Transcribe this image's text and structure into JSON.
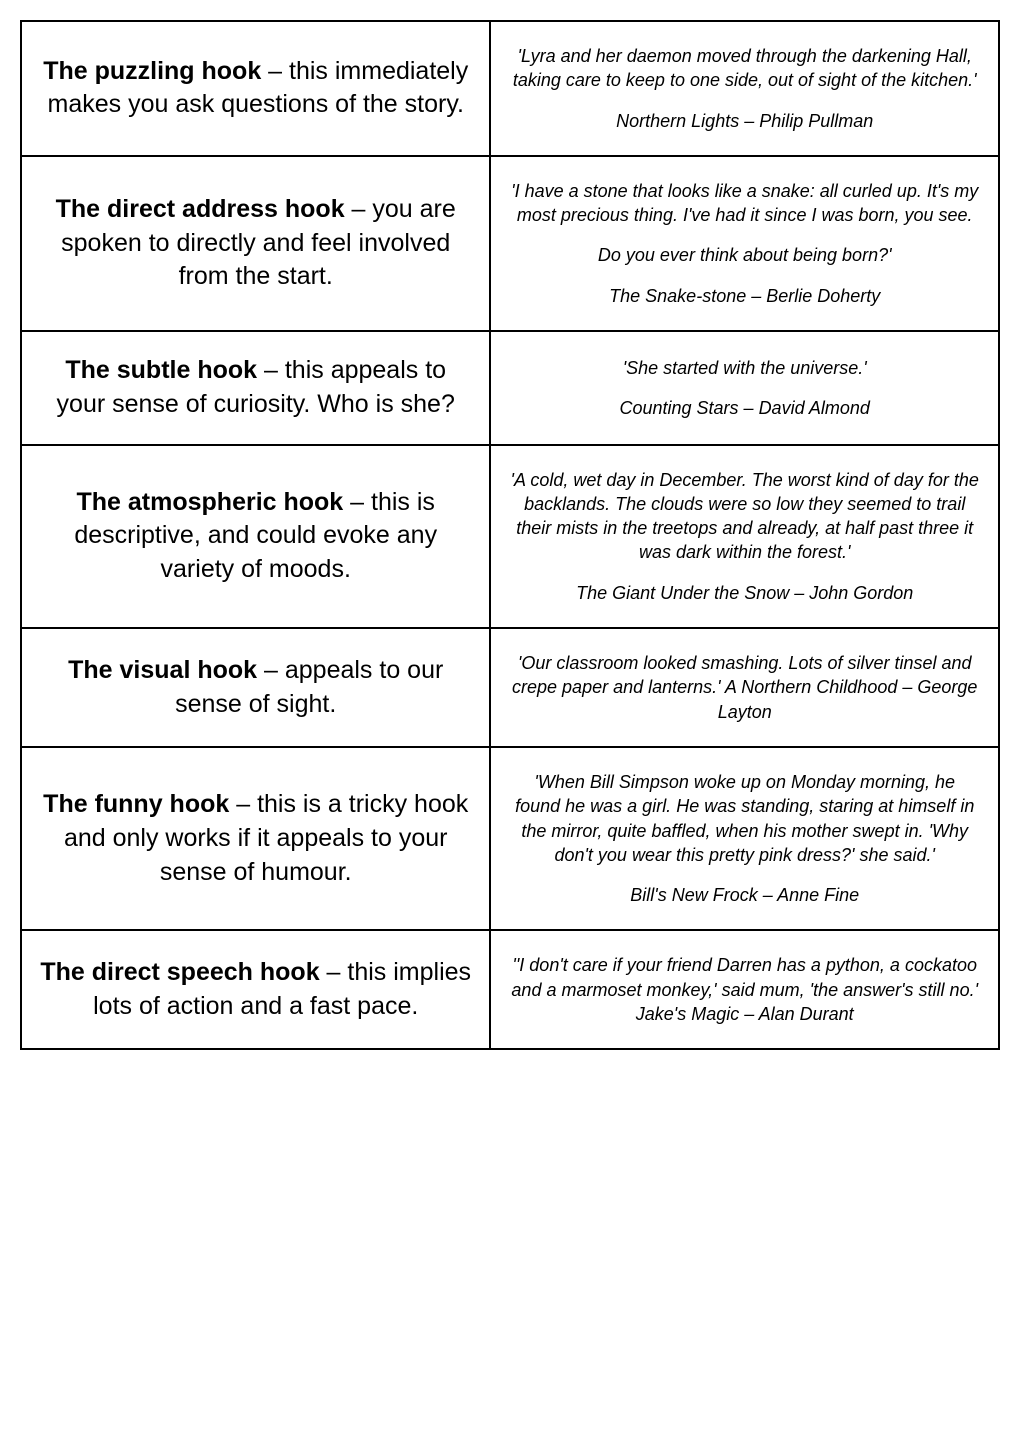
{
  "rows": [
    {
      "hook_name": "The puzzling hook",
      "hook_desc": " – this immediately makes you ask questions of the story.",
      "quotes": [
        "'Lyra and her daemon moved through the darkening Hall, taking care to keep to one side, out of sight of the kitchen.'"
      ],
      "source": "Northern Lights – Philip Pullman"
    },
    {
      "hook_name": "The direct address hook",
      "hook_desc": " – you are spoken to directly and feel involved from the start.",
      "quotes": [
        "'I have a stone that looks like a snake: all curled up. It's my most precious thing. I've had it since I was born, you see.",
        "Do you ever think about being born?'"
      ],
      "source": "The Snake-stone – Berlie Doherty"
    },
    {
      "hook_name": "The subtle hook",
      "hook_desc": " – this appeals to your sense of curiosity. Who is she?",
      "quotes": [
        "'She started with the universe.'"
      ],
      "source": "Counting Stars – David Almond"
    },
    {
      "hook_name": "The atmospheric hook",
      "hook_desc": " – this is descriptive, and could evoke any variety of moods.",
      "quotes": [
        "'A cold, wet day in December. The worst kind of day for the backlands. The clouds were so low they seemed to trail their mists in the treetops and already, at half past three it was dark within the forest.'"
      ],
      "source": "The Giant Under the Snow – John Gordon"
    },
    {
      "hook_name": "The visual hook",
      "hook_desc": " – appeals to our sense of sight.",
      "quotes": [
        "'Our classroom looked smashing. Lots of silver tinsel and crepe paper and lanterns.' A Northern Childhood – George Layton"
      ],
      "source": ""
    },
    {
      "hook_name": "The funny hook",
      "hook_desc": " – this is a tricky hook and only works if it appeals to your sense of humour.",
      "quotes": [
        "'When Bill Simpson woke up on Monday morning, he found he was a girl. He was standing, staring at himself in the mirror, quite baffled, when his mother swept in. 'Why don't you wear this pretty pink dress?' she said.'"
      ],
      "source": "Bill's New Frock – Anne Fine"
    },
    {
      "hook_name": "The direct speech hook",
      "hook_desc": " – this implies lots of action and a fast pace.",
      "quotes": [
        "''I don't care if your friend Darren has a python, a cockatoo and a marmoset monkey,' said mum, 'the answer's still no.' Jake's Magic – Alan Durant"
      ],
      "source": ""
    }
  ]
}
